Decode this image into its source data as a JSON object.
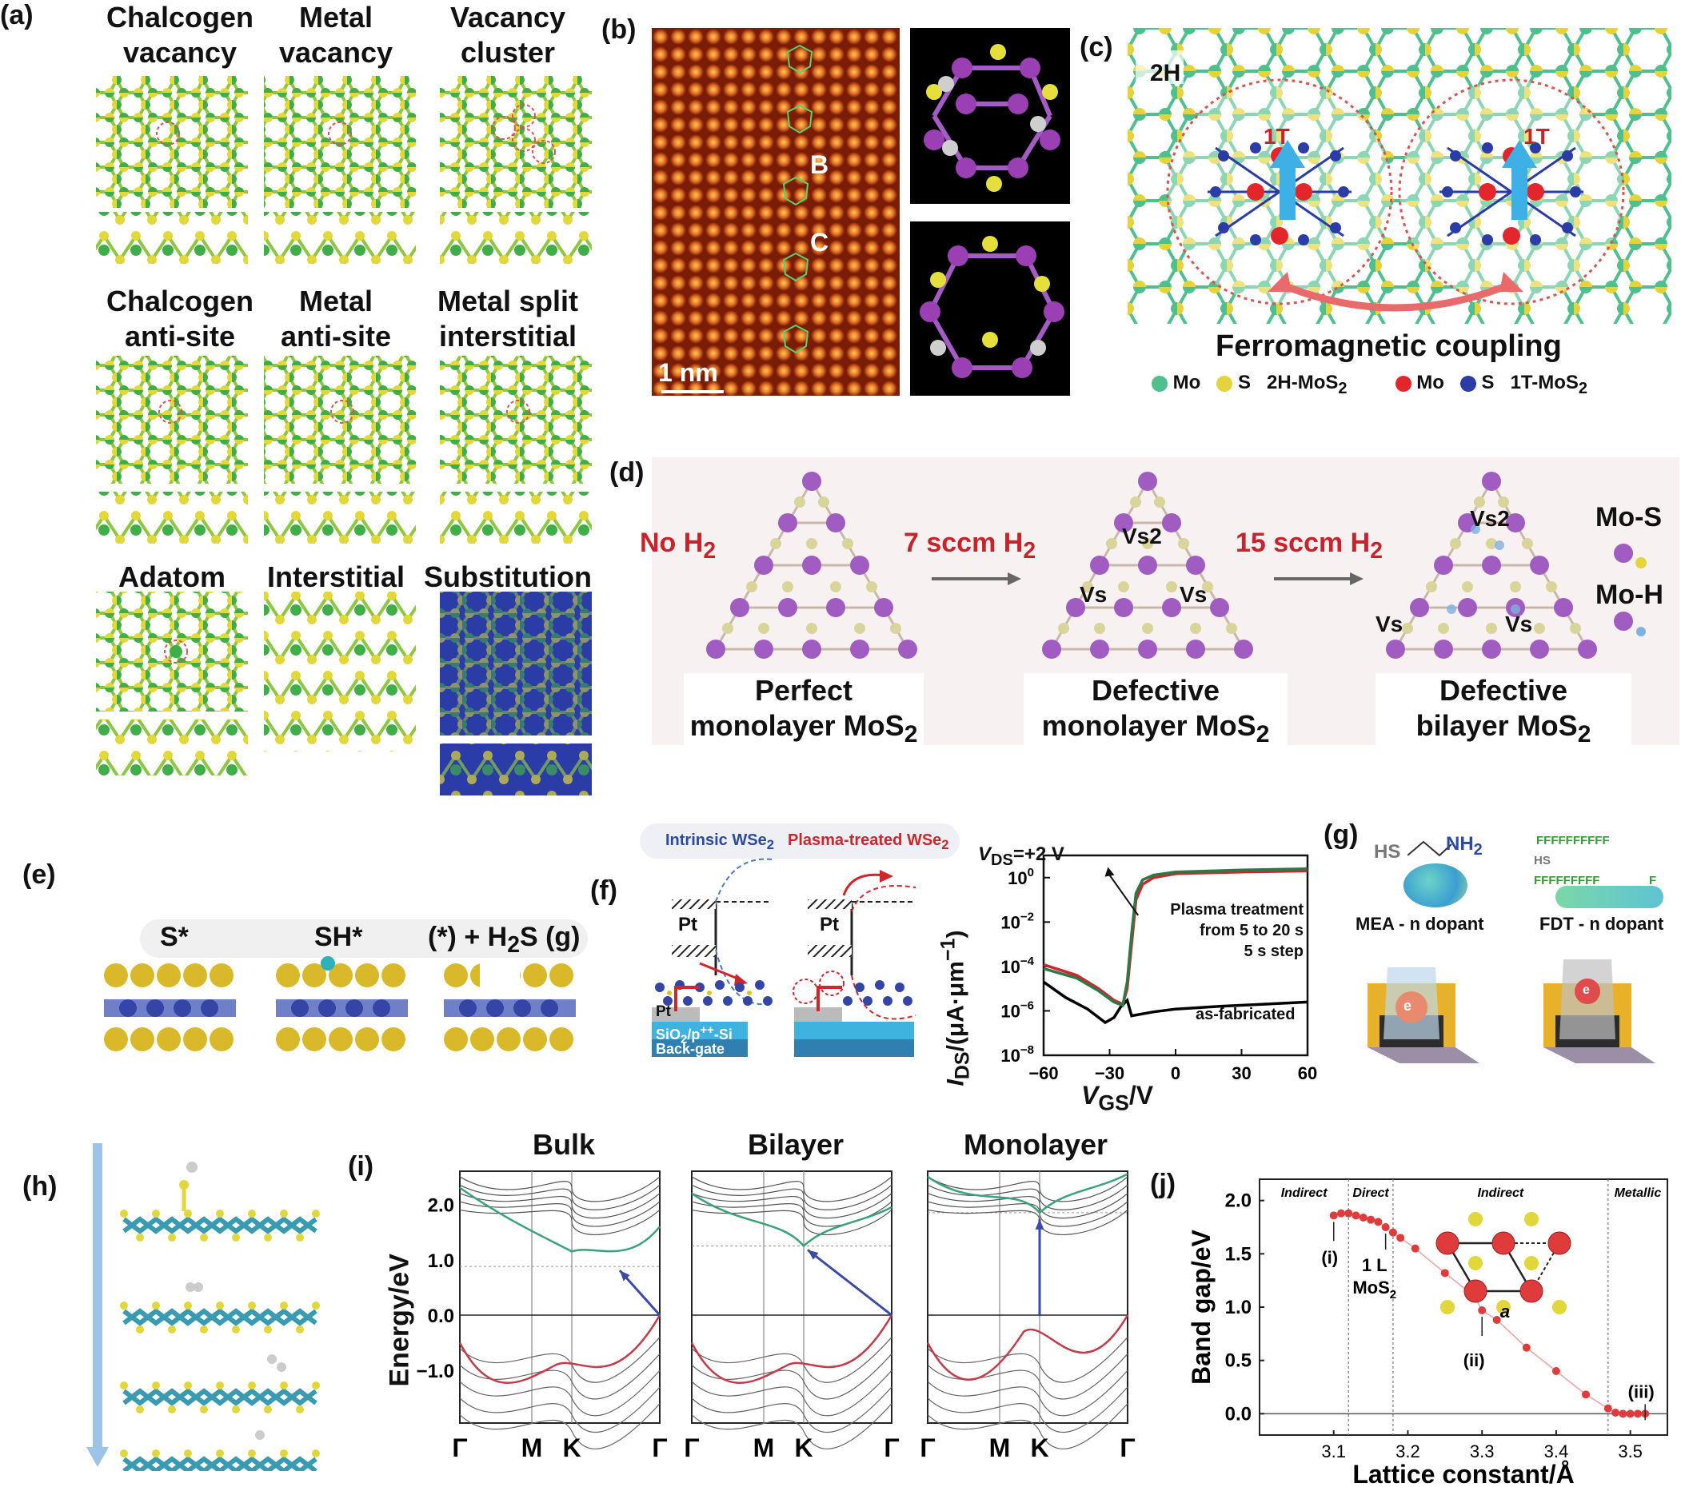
{
  "panels": {
    "a": {
      "label": "(a)",
      "titles": [
        [
          "Chalcogen",
          "vacancy"
        ],
        [
          "Metal",
          "vacancy"
        ],
        [
          "Vacancy",
          "cluster"
        ],
        [
          "Chalcogen",
          "anti-site"
        ],
        [
          "Metal",
          "anti-site"
        ],
        [
          "Metal split",
          "interstitial"
        ],
        [
          "Adatom"
        ],
        [
          "Interstitial"
        ],
        [
          "Substitution"
        ]
      ]
    },
    "b": {
      "label": "(b)",
      "site_b": "B",
      "site_c": "C",
      "scale": "1 nm"
    },
    "c": {
      "label": "(c)",
      "phase_2h": "2H",
      "phase_1t": "1T",
      "coupling": "Ferromagnetic coupling",
      "legend": {
        "mo": "Mo",
        "s": "S",
        "group_2h": "2H-MoS",
        "group_1t": "1T-MoS",
        "sub": "2"
      }
    },
    "d": {
      "label": "(d)",
      "conditions": [
        {
          "text": "No H",
          "sub": "2"
        },
        {
          "text": "7 sccm H",
          "sub": "2"
        },
        {
          "text": "15 sccm H",
          "sub": "2"
        }
      ],
      "captions": [
        {
          "line1": "Perfect",
          "line2": "monolayer MoS",
          "sub": "2"
        },
        {
          "line1": "Defective",
          "line2": "monolayer MoS",
          "sub": "2"
        },
        {
          "line1": "Defective",
          "line2": "bilayer MoS",
          "sub": "2"
        }
      ],
      "vs": "Vs",
      "vs2": "Vs2",
      "mo_s": "Mo-S",
      "mo_h": "Mo-H"
    },
    "e": {
      "label": "(e)",
      "state1": "S*",
      "state2": "SH*",
      "state3": "(*) + H",
      "state3_sub": "2",
      "state3_tail": "S (g)"
    },
    "f": {
      "label": "(f)",
      "intrinsic": "Intrinsic WSe",
      "plasma": "Plasma-treated WSe",
      "sub2": "2",
      "pt": "Pt",
      "substrate": "SiO",
      "substrate_sub": "2",
      "substrate_tail": "/p",
      "substrate_sup": "++",
      "substrate_end": "-Si",
      "backgate": "Back-gate",
      "vds": "V",
      "vds_sub": "DS",
      "vds_tail": "=+2 V",
      "annot1": "Plasma treatment",
      "annot2": "from 5 to 20 s",
      "annot3": "5 s step",
      "asfab": "as-fabricated",
      "xaxis": "V",
      "xaxis_sub": "GS",
      "xaxis_tail": "/V",
      "yaxis": "I",
      "yaxis_sub": "DS",
      "yaxis_tail": "/(μA·μm",
      "yaxis_sup": "−1",
      "yaxis_end": ")"
    },
    "g": {
      "label": "(g)",
      "hs": "HS",
      "nh": "NH",
      "nh_sub": "2",
      "mea": "MEA - n dopant",
      "fdt": "FDT - n dopant",
      "fchain1": "FFFFFFFFFF",
      "fchain2": "FFFFFFFFF",
      "f": "F",
      "electron": "e"
    },
    "h": {
      "label": "(h)"
    },
    "i": {
      "label": "(i)",
      "titles": [
        "Bulk",
        "Bilayer",
        "Monolayer"
      ],
      "ylabel": "Energy/eV",
      "kpoints": [
        "Γ",
        "M",
        "K",
        "Γ"
      ]
    },
    "j": {
      "label": "(j)",
      "regions": [
        "Indirect",
        "Direct",
        "Indirect",
        "Metallic"
      ],
      "point_labels": [
        "(i)",
        "(ii)",
        "(iii)"
      ],
      "onel": "1 L",
      "mos": "MoS",
      "mos_sub": "2",
      "a": "a",
      "ylabel": "Band gap/eV",
      "xlabel": "Lattice constant/Å"
    }
  },
  "chart_data": [
    {
      "type": "line",
      "panel": "f",
      "xlabel": "VGS/V",
      "ylabel": "IDS/(μA·μm−1)",
      "xlim": [
        -60,
        60
      ],
      "ylim_log10": [
        -8,
        1
      ],
      "yscale": "log",
      "xticks": [
        -60,
        -30,
        0,
        30,
        60
      ],
      "yticks": [
        "10^0",
        "10^-2",
        "10^-4",
        "10^-6",
        "10^-8"
      ],
      "series": [
        {
          "name": "as-fabricated",
          "x": [
            -60,
            -50,
            -40,
            -32,
            -28,
            -25,
            -22,
            -20,
            -10,
            0,
            20,
            40,
            60
          ],
          "y": [
            2e-05,
            4e-06,
            1.2e-06,
            3e-07,
            5e-07,
            1.5e-06,
            3e-06,
            6e-07,
            9e-07,
            1.2e-06,
            1.6e-06,
            2e-06,
            2.5e-06
          ]
        },
        {
          "x": [
            -60,
            -45,
            -35,
            -28,
            -24,
            -22,
            -20,
            -18,
            -15,
            -10,
            0,
            30,
            60
          ],
          "y": [
            0.00012,
            4e-05,
            1e-05,
            3e-06,
            2e-06,
            1e-05,
            0.001,
            0.1,
            0.5,
            1,
            1.5,
            1.8,
            2
          ]
        },
        {
          "x": [
            -60,
            -45,
            -35,
            -28,
            -24,
            -22,
            -20,
            -18,
            -15,
            -10,
            0,
            30,
            60
          ],
          "y": [
            8e-05,
            3e-05,
            8e-06,
            2.5e-06,
            1.8e-06,
            2e-05,
            0.003,
            0.2,
            0.8,
            1.3,
            1.8,
            2.2,
            2.5
          ]
        }
      ]
    },
    {
      "type": "scatter",
      "panel": "j",
      "xlabel": "Lattice constant/Å",
      "ylabel": "Band gap/eV",
      "xlim": [
        3.0,
        3.55
      ],
      "ylim": [
        -0.2,
        2.2
      ],
      "xticks": [
        3.1,
        3.2,
        3.3,
        3.4,
        3.5
      ],
      "yticks": [
        0.0,
        0.5,
        1.0,
        1.5,
        2.0
      ],
      "boundaries": [
        3.12,
        3.18,
        3.47
      ],
      "points": [
        [
          3.1,
          1.86
        ],
        [
          3.11,
          1.88
        ],
        [
          3.12,
          1.88
        ],
        [
          3.13,
          1.86
        ],
        [
          3.14,
          1.84
        ],
        [
          3.15,
          1.82
        ],
        [
          3.16,
          1.8
        ],
        [
          3.17,
          1.75
        ],
        [
          3.18,
          1.7
        ],
        [
          3.19,
          1.65
        ],
        [
          3.21,
          1.55
        ],
        [
          3.25,
          1.32
        ],
        [
          3.29,
          1.1
        ],
        [
          3.3,
          0.97
        ],
        [
          3.32,
          0.88
        ],
        [
          3.36,
          0.62
        ],
        [
          3.4,
          0.4
        ],
        [
          3.44,
          0.18
        ],
        [
          3.47,
          0.05
        ],
        [
          3.48,
          0.01
        ],
        [
          3.49,
          0.0
        ],
        [
          3.5,
          0.0
        ],
        [
          3.51,
          0.0
        ],
        [
          3.52,
          0.0
        ]
      ]
    }
  ]
}
